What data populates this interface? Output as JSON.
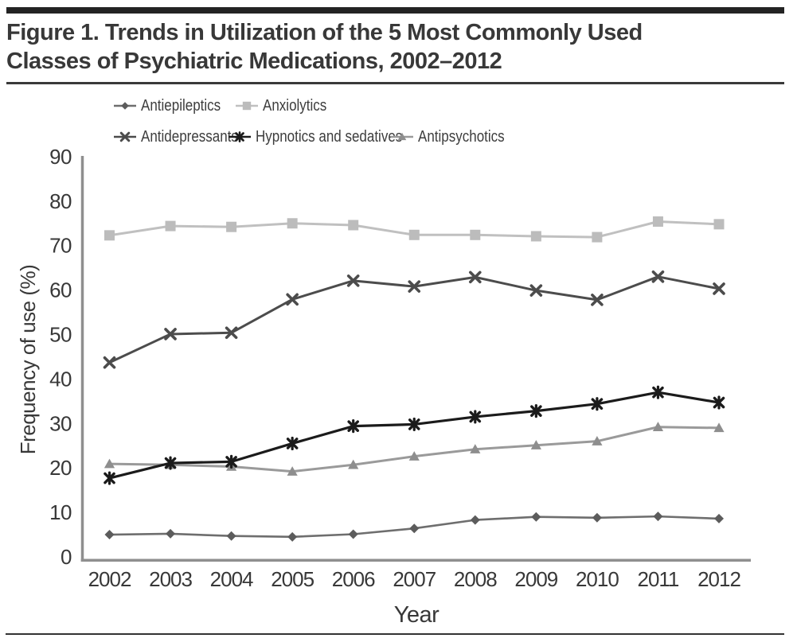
{
  "figure": {
    "title_line1": "Figure 1. Trends in Utilization of the 5 Most Commonly Used",
    "title_line2": "Classes of Psychiatric Medications, 2002–2012"
  },
  "colors": {
    "title_text": "#383838",
    "axis_line": "#8f8f8f",
    "axis_text": "#383838",
    "legend_text": "#3d3d3d",
    "top_bar": "#232323",
    "rule": "#3a3a3a"
  },
  "chart_data": {
    "type": "line",
    "title": "",
    "xlabel": "Year",
    "ylabel": "Frequency of use (%)",
    "ylim": [
      0,
      90
    ],
    "yticks": [
      0,
      10,
      20,
      30,
      40,
      50,
      60,
      70,
      80,
      90
    ],
    "grid": false,
    "legend_position": "top",
    "x": [
      2002,
      2003,
      2004,
      2005,
      2006,
      2007,
      2008,
      2009,
      2010,
      2011,
      2012
    ],
    "series": [
      {
        "name": "Antiepileptics",
        "marker": "diamond",
        "color": "#5c5c5c",
        "line_color": "#6e6e6e",
        "line_width": 2.6,
        "values": [
          5.0,
          5.2,
          4.7,
          4.5,
          5.1,
          6.4,
          8.3,
          9.0,
          8.8,
          9.1,
          8.6
        ]
      },
      {
        "name": "Anxiolytics",
        "marker": "square",
        "color": "#bcbcbc",
        "line_color": "#c0c0c0",
        "line_width": 3,
        "values": [
          72.3,
          74.4,
          74.2,
          75.0,
          74.6,
          72.4,
          72.4,
          72.1,
          71.9,
          75.4,
          74.8
        ]
      },
      {
        "name": "Antidepressants",
        "marker": "x",
        "color": "#4c4c4c",
        "line_color": "#4c4c4c",
        "line_width": 3,
        "values": [
          43.7,
          50.1,
          50.4,
          57.9,
          62.1,
          60.8,
          62.9,
          59.9,
          57.8,
          63.0,
          60.3
        ]
      },
      {
        "name": "Hypnotics and sedatives",
        "marker": "star",
        "color": "#1b1b1b",
        "line_color": "#1b1b1b",
        "line_width": 3.2,
        "values": [
          17.7,
          21.1,
          21.4,
          25.5,
          29.4,
          29.8,
          31.5,
          32.8,
          34.4,
          37.0,
          34.7
        ]
      },
      {
        "name": "Antipsychotics",
        "marker": "triangle",
        "color": "#8e8e8e",
        "line_color": "#9a9a9a",
        "line_width": 3,
        "values": [
          20.9,
          20.7,
          20.3,
          19.2,
          20.7,
          22.6,
          24.2,
          25.1,
          26.0,
          29.2,
          29.0
        ]
      }
    ],
    "legend_rows": [
      [
        0,
        1
      ],
      [
        2,
        3,
        4
      ]
    ]
  }
}
